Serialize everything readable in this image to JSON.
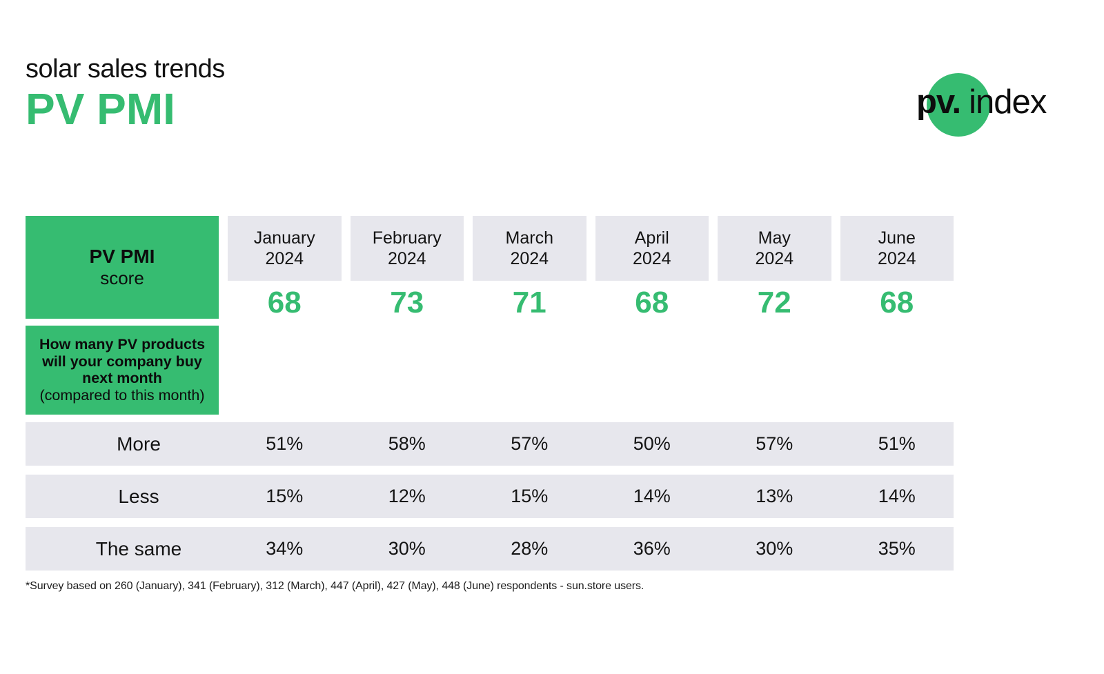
{
  "header": {
    "title_line1": "solar sales trends",
    "title_line2": "PV PMI"
  },
  "logo": {
    "pv": "pv.",
    "index": "index"
  },
  "colors": {
    "green": "#36bc71",
    "gray": "#e7e7ed"
  },
  "table": {
    "left_header": {
      "title": "PV PMI",
      "subtitle": "score"
    },
    "months": [
      {
        "name": "January",
        "year": "2024",
        "score": "68"
      },
      {
        "name": "February",
        "year": "2024",
        "score": "73"
      },
      {
        "name": "March",
        "year": "2024",
        "score": "71"
      },
      {
        "name": "April",
        "year": "2024",
        "score": "68"
      },
      {
        "name": "May",
        "year": "2024",
        "score": "72"
      },
      {
        "name": "June",
        "year": "2024",
        "score": "68"
      }
    ],
    "question": {
      "line1": "How many PV products",
      "line2": "will your company buy",
      "line3": "next month",
      "note": "(compared to this month)"
    },
    "rows": [
      {
        "label": "More",
        "values": [
          "51%",
          "58%",
          "57%",
          "50%",
          "57%",
          "51%"
        ]
      },
      {
        "label": "Less",
        "values": [
          "15%",
          "12%",
          "15%",
          "14%",
          "13%",
          "14%"
        ]
      },
      {
        "label": "The same",
        "values": [
          "34%",
          "30%",
          "28%",
          "36%",
          "30%",
          "35%"
        ]
      }
    ]
  },
  "footnote": {
    "text": "*Survey based on 260 (January), 341 (February), 312 (March), 447 (April), 427 (May), 448 (June) respondents - sun.store users."
  },
  "chart_data": {
    "type": "table",
    "title": "solar sales trends — PV PMI",
    "categories": [
      "January 2024",
      "February 2024",
      "March 2024",
      "April 2024",
      "May 2024",
      "June 2024"
    ],
    "series": [
      {
        "name": "PV PMI score",
        "values": [
          68,
          73,
          71,
          68,
          72,
          68
        ]
      },
      {
        "name": "More",
        "unit": "%",
        "values": [
          51,
          58,
          57,
          50,
          57,
          51
        ]
      },
      {
        "name": "Less",
        "unit": "%",
        "values": [
          15,
          12,
          15,
          14,
          13,
          14
        ]
      },
      {
        "name": "The same",
        "unit": "%",
        "values": [
          34,
          30,
          28,
          36,
          30,
          35
        ]
      }
    ],
    "question": "How many PV products will your company buy next month (compared to this month)",
    "footnote": "*Survey based on 260 (January), 341 (February), 312 (March), 447 (April), 427 (May), 448 (June) respondents - sun.store users.",
    "respondents": {
      "January": 260,
      "February": 341,
      "March": 312,
      "April": 447,
      "May": 427,
      "June": 448
    }
  }
}
